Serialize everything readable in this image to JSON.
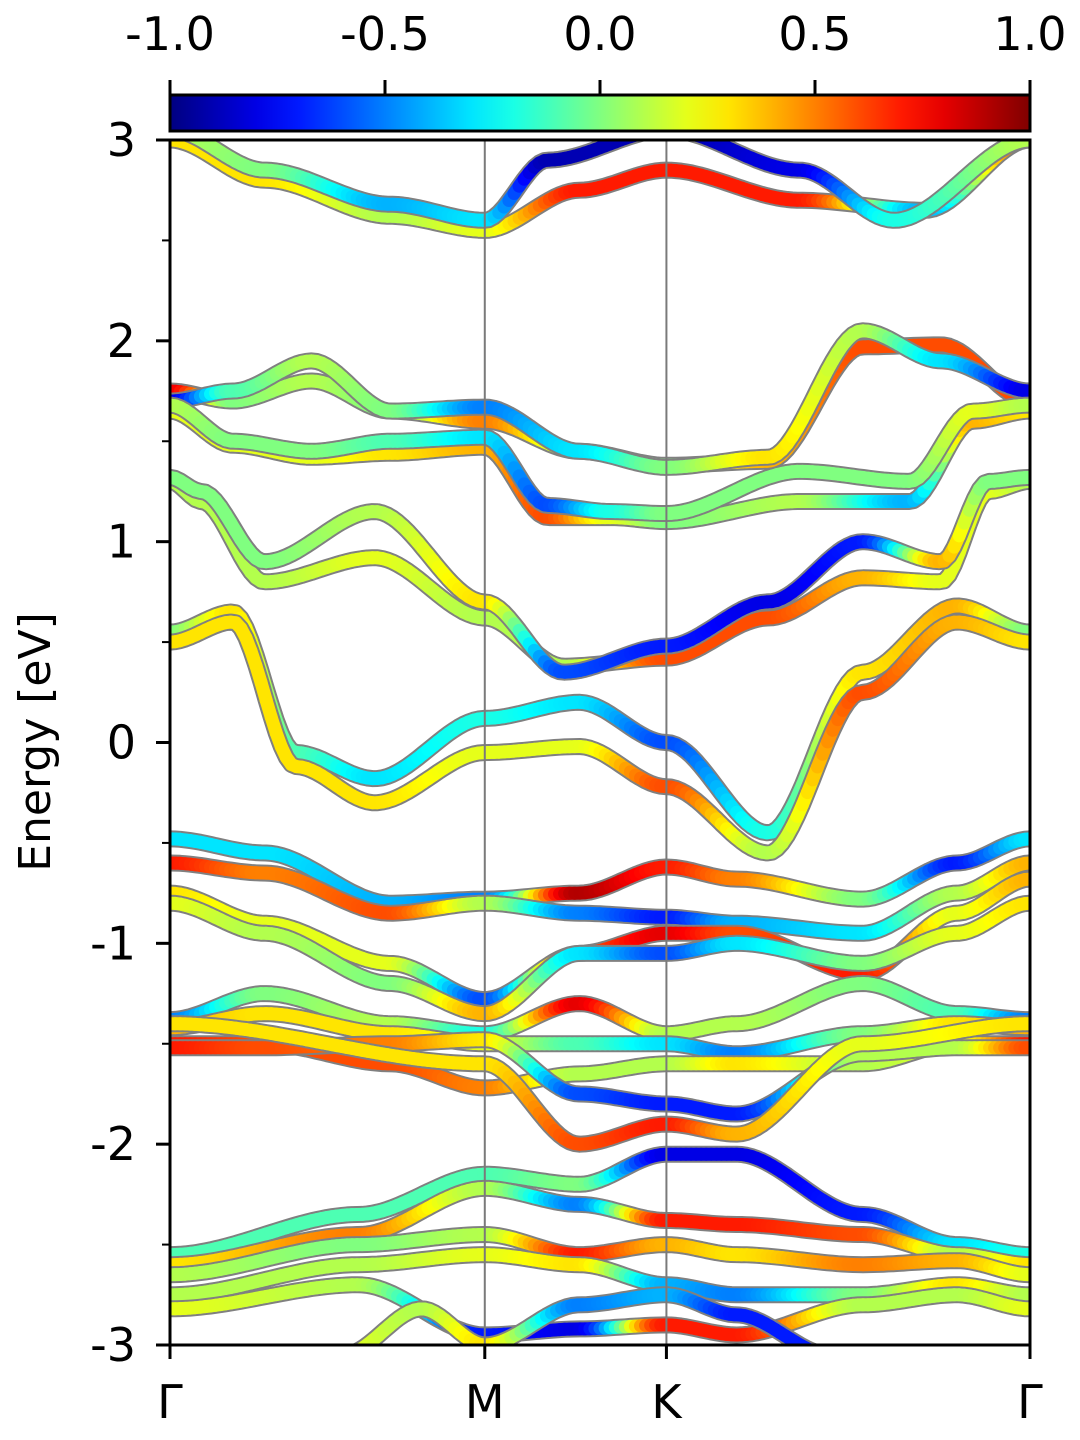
{
  "chart_data": {
    "type": "line",
    "title": "",
    "xlabel": "",
    "ylabel": "Energy [eV]",
    "ylim": [
      -3,
      3
    ],
    "x_ticks": [
      {
        "label": "Γ",
        "k": 0.0
      },
      {
        "label": "M",
        "k": 1.0
      },
      {
        "label": "K",
        "k": 1.577
      },
      {
        "label": "Γ",
        "k": 2.732
      }
    ],
    "y_ticks": [
      {
        "value": 3,
        "label": "3"
      },
      {
        "value": 2,
        "label": "2"
      },
      {
        "value": 1,
        "label": "1"
      },
      {
        "value": 0,
        "label": "0"
      },
      {
        "value": -1,
        "label": "-1"
      },
      {
        "value": -2,
        "label": "-2"
      },
      {
        "value": -3,
        "label": "-3"
      }
    ],
    "y_minor_ticks": [
      2.5,
      1.5,
      0.5,
      -0.5,
      -1.5,
      -2.5
    ],
    "colorbar": {
      "colormap": "jet",
      "range": [
        -1.0,
        1.0
      ],
      "tick_labels": [
        "-1.0",
        "-0.5",
        "0.0",
        "0.5",
        "1.0"
      ],
      "position": "top"
    },
    "bands": [
      {
        "k": [
          0,
          0.3,
          0.7,
          1.0,
          1.3,
          1.577,
          2.0,
          2.4,
          2.732
        ],
        "energy": [
          3.0,
          2.8,
          2.62,
          2.55,
          2.75,
          2.85,
          2.7,
          2.65,
          3.0
        ],
        "weight": [
          0.3,
          0.3,
          0.1,
          0.2,
          0.7,
          0.7,
          0.7,
          -0.4,
          0.6
        ]
      },
      {
        "k": [
          0,
          0.3,
          0.7,
          1.0,
          1.2,
          1.577,
          2.0,
          2.3,
          2.732
        ],
        "energy": [
          3.05,
          2.85,
          2.68,
          2.6,
          2.9,
          3.05,
          2.85,
          2.6,
          3.0
        ],
        "weight": [
          0.1,
          0.0,
          -0.4,
          -0.3,
          -0.9,
          -0.9,
          -0.8,
          -0.2,
          0.1
        ]
      },
      {
        "k": [
          0,
          0.2,
          0.45,
          0.7,
          1.0,
          1.3,
          1.577,
          1.9,
          2.2,
          2.45,
          2.732
        ],
        "energy": [
          1.75,
          1.7,
          1.8,
          1.65,
          1.6,
          1.45,
          1.38,
          1.4,
          1.97,
          1.98,
          1.7
        ],
        "weight": [
          0.8,
          0.0,
          0.1,
          0.0,
          0.5,
          0.1,
          0.0,
          0.4,
          0.6,
          0.6,
          0.6
        ]
      },
      {
        "k": [
          0,
          0.2,
          0.45,
          0.7,
          1.0,
          1.3,
          1.577,
          1.9,
          2.2,
          2.45,
          2.732
        ],
        "energy": [
          1.7,
          1.75,
          1.9,
          1.65,
          1.67,
          1.45,
          1.37,
          1.42,
          2.05,
          1.9,
          1.75
        ],
        "weight": [
          -0.8,
          -0.1,
          0.1,
          0.0,
          -0.5,
          -0.3,
          0.0,
          0.3,
          0.1,
          -0.3,
          -0.8
        ]
      },
      {
        "k": [
          0,
          0.2,
          0.45,
          0.7,
          1.0,
          1.2,
          1.4,
          1.577,
          2.0,
          2.35,
          2.55,
          2.732
        ],
        "energy": [
          1.65,
          1.48,
          1.42,
          1.44,
          1.47,
          1.12,
          1.12,
          1.1,
          1.2,
          1.2,
          1.6,
          1.65
        ],
        "weight": [
          0.2,
          0.2,
          0.2,
          0.3,
          0.4,
          0.6,
          0.2,
          0.0,
          0.1,
          -0.4,
          0.4,
          0.3
        ]
      },
      {
        "k": [
          0,
          0.2,
          0.45,
          0.7,
          1.0,
          1.2,
          1.4,
          1.577,
          2.0,
          2.35,
          2.55,
          2.732
        ],
        "energy": [
          1.68,
          1.5,
          1.45,
          1.5,
          1.52,
          1.18,
          1.15,
          1.14,
          1.35,
          1.3,
          1.65,
          1.68
        ],
        "weight": [
          0.1,
          0.0,
          0.0,
          -0.1,
          -0.3,
          -0.6,
          -0.2,
          0.0,
          0.0,
          0.0,
          0.2,
          0.1
        ]
      },
      {
        "k": [
          0,
          0.1,
          0.3,
          0.65,
          1.0,
          1.25,
          1.577,
          1.9,
          2.2,
          2.45,
          2.6,
          2.732
        ],
        "energy": [
          1.3,
          1.2,
          0.8,
          0.92,
          0.62,
          0.38,
          0.42,
          0.62,
          0.82,
          0.8,
          1.25,
          1.3
        ],
        "weight": [
          0.1,
          0.1,
          0.1,
          0.2,
          0.1,
          0.1,
          0.6,
          0.6,
          0.4,
          0.2,
          0.2,
          0.1
        ]
      },
      {
        "k": [
          0,
          0.1,
          0.3,
          0.65,
          1.0,
          1.25,
          1.577,
          1.9,
          2.2,
          2.45,
          2.6,
          2.732
        ],
        "energy": [
          1.32,
          1.25,
          0.9,
          1.15,
          0.7,
          0.35,
          0.48,
          0.7,
          1.0,
          0.9,
          1.3,
          1.32
        ],
        "weight": [
          0.0,
          0.0,
          0.0,
          0.1,
          0.3,
          -0.6,
          -0.7,
          -0.8,
          -0.7,
          0.4,
          0.0,
          0.0
        ]
      },
      {
        "k": [
          0,
          0.2,
          0.4,
          0.65,
          1.0,
          1.3,
          1.577,
          1.9,
          2.2,
          2.5,
          2.732
        ],
        "energy": [
          0.55,
          0.65,
          -0.05,
          -0.18,
          0.12,
          0.2,
          0.0,
          -0.45,
          0.35,
          0.68,
          0.55
        ],
        "weight": [
          0.0,
          0.3,
          -0.1,
          -0.3,
          -0.2,
          -0.3,
          -0.6,
          -0.2,
          0.3,
          0.4,
          0.0
        ]
      },
      {
        "k": [
          0,
          0.2,
          0.4,
          0.65,
          1.0,
          1.3,
          1.577,
          1.9,
          2.2,
          2.5,
          2.732
        ],
        "energy": [
          0.5,
          0.6,
          -0.12,
          -0.3,
          -0.05,
          -0.02,
          -0.22,
          -0.55,
          0.25,
          0.6,
          0.5
        ],
        "weight": [
          0.3,
          0.3,
          0.3,
          0.3,
          0.2,
          0.2,
          0.6,
          0.1,
          0.6,
          0.4,
          0.3
        ]
      },
      {
        "k": [
          0,
          0.3,
          0.7,
          1.0,
          1.3,
          1.577,
          1.8,
          2.2,
          2.5,
          2.732
        ],
        "energy": [
          -0.48,
          -0.55,
          -0.8,
          -0.78,
          -0.75,
          -0.62,
          -0.68,
          -0.78,
          -0.6,
          -0.48
        ],
        "weight": [
          -0.3,
          -0.3,
          -0.4,
          -0.5,
          0.9,
          0.7,
          0.5,
          0.0,
          -0.7,
          -0.3
        ]
      },
      {
        "k": [
          0,
          0.3,
          0.7,
          1.0,
          1.3,
          1.577,
          1.8,
          2.2,
          2.5,
          2.732
        ],
        "energy": [
          -0.6,
          -0.65,
          -0.85,
          -0.8,
          -0.85,
          -0.87,
          -0.9,
          -0.95,
          -0.75,
          -0.6
        ],
        "weight": [
          0.7,
          0.5,
          0.6,
          0.1,
          -0.5,
          -0.7,
          -0.4,
          -0.3,
          0.1,
          0.4
        ]
      },
      {
        "k": [
          0,
          0.3,
          0.7,
          1.0,
          1.3,
          1.577,
          1.8,
          2.2,
          2.5,
          2.732
        ],
        "energy": [
          -0.75,
          -0.9,
          -1.1,
          -1.28,
          -1.05,
          -0.95,
          -0.95,
          -1.15,
          -0.85,
          -0.68
        ],
        "weight": [
          0.3,
          0.2,
          0.2,
          -0.6,
          0.6,
          0.8,
          0.6,
          0.7,
          0.2,
          0.4
        ]
      },
      {
        "k": [
          0,
          0.3,
          0.7,
          1.0,
          1.3,
          1.577,
          1.8,
          2.2,
          2.5,
          2.732
        ],
        "energy": [
          -0.8,
          -0.95,
          -1.2,
          -1.35,
          -1.05,
          -1.05,
          -1.0,
          -1.1,
          -0.95,
          -0.8
        ],
        "weight": [
          0.2,
          0.1,
          0.0,
          0.4,
          -0.3,
          -0.6,
          -0.3,
          0.0,
          0.2,
          0.3
        ]
      },
      {
        "k": [
          0,
          0.3,
          0.7,
          1.0,
          1.3,
          1.577,
          1.8,
          2.2,
          2.5,
          2.732
        ],
        "energy": [
          -1.38,
          -1.25,
          -1.4,
          -1.45,
          -1.3,
          -1.45,
          -1.4,
          -1.2,
          -1.35,
          -1.38
        ],
        "weight": [
          -0.5,
          0.0,
          0.1,
          -0.2,
          0.8,
          0.1,
          0.1,
          0.0,
          -0.1,
          -0.5
        ]
      },
      {
        "k": [
          0,
          0.3,
          0.7,
          1.0,
          1.3,
          1.577,
          1.8,
          2.2,
          2.5,
          2.732
        ],
        "energy": [
          -1.42,
          -1.35,
          -1.45,
          -1.5,
          -1.5,
          -1.5,
          -1.55,
          -1.45,
          -1.4,
          -1.42
        ],
        "weight": [
          0.4,
          0.3,
          0.3,
          0.2,
          -0.1,
          -0.3,
          -0.5,
          0.0,
          0.3,
          0.4
        ]
      },
      {
        "k": [
          0,
          0.3,
          0.7,
          1.0,
          1.3,
          1.577,
          1.8,
          2.2,
          2.5,
          2.732
        ],
        "energy": [
          -1.5,
          -1.5,
          -1.6,
          -1.72,
          -1.65,
          -1.6,
          -1.6,
          -1.6,
          -1.5,
          -1.5
        ],
        "weight": [
          0.7,
          0.6,
          0.6,
          0.5,
          0.1,
          0.1,
          0.3,
          0.1,
          0.2,
          0.7
        ]
      },
      {
        "k": [
          0,
          0.3,
          0.7,
          1.0,
          1.3,
          1.577,
          1.8,
          2.2,
          2.5,
          2.732
        ],
        "energy": [
          -1.52,
          -1.52,
          -1.5,
          -1.48,
          -1.75,
          -1.8,
          -1.85,
          -1.55,
          -1.52,
          -1.52
        ],
        "weight": [
          0.7,
          0.6,
          0.5,
          0.3,
          -0.6,
          -0.7,
          -0.7,
          0.1,
          0.1,
          0.6
        ]
      },
      {
        "k": [
          0,
          1.0,
          1.3,
          1.577,
          1.8,
          2.2,
          2.732
        ],
        "energy": [
          -1.4,
          -1.6,
          -2.0,
          -1.9,
          -1.95,
          -1.5,
          -1.4
        ],
        "weight": [
          0.3,
          0.3,
          0.6,
          0.7,
          0.4,
          0.2,
          0.3
        ]
      },
      {
        "k": [
          0,
          0.6,
          1.0,
          1.3,
          1.577,
          1.8,
          2.2,
          2.5,
          2.732
        ],
        "energy": [
          -2.55,
          -2.35,
          -2.15,
          -2.2,
          -2.05,
          -2.05,
          -2.35,
          -2.5,
          -2.55
        ],
        "weight": [
          -0.1,
          -0.1,
          -0.1,
          0.0,
          -0.8,
          -0.8,
          -0.7,
          -0.3,
          -0.2
        ]
      },
      {
        "k": [
          0,
          0.6,
          1.0,
          1.3,
          1.577,
          1.8,
          2.2,
          2.5,
          2.732
        ],
        "energy": [
          -2.6,
          -2.45,
          -2.22,
          -2.3,
          -2.38,
          -2.4,
          -2.45,
          -2.55,
          -2.6
        ],
        "weight": [
          0.3,
          0.5,
          0.1,
          -0.5,
          0.7,
          0.7,
          0.6,
          0.1,
          0.3
        ]
      },
      {
        "k": [
          0,
          0.6,
          1.0,
          1.3,
          1.577,
          1.8,
          2.2,
          2.5,
          2.732
        ],
        "energy": [
          -2.65,
          -2.5,
          -2.45,
          -2.55,
          -2.5,
          -2.55,
          -2.6,
          -2.58,
          -2.65
        ],
        "weight": [
          0.1,
          0.0,
          0.1,
          0.7,
          0.4,
          0.3,
          0.5,
          0.4,
          0.2
        ]
      },
      {
        "k": [
          0,
          0.6,
          1.0,
          1.3,
          1.577,
          1.8,
          2.2,
          2.5,
          2.732
        ],
        "energy": [
          -2.75,
          -2.6,
          -2.55,
          -2.6,
          -2.7,
          -2.75,
          -2.75,
          -2.7,
          -2.75
        ],
        "weight": [
          0.1,
          0.1,
          0.2,
          0.3,
          -0.4,
          -0.5,
          0.0,
          0.3,
          0.1
        ]
      },
      {
        "k": [
          0,
          0.6,
          1.0,
          1.3,
          1.577,
          1.8,
          2.2,
          2.5,
          2.732
        ],
        "energy": [
          -2.82,
          -2.7,
          -2.95,
          -2.92,
          -2.9,
          -2.95,
          -2.8,
          -2.75,
          -2.82
        ],
        "weight": [
          0.2,
          0.1,
          -0.7,
          -0.8,
          0.7,
          0.7,
          0.1,
          0.1,
          0.2
        ]
      },
      {
        "k": [
          0.55,
          0.8,
          1.0,
          1.3,
          1.577,
          1.8,
          2.1
        ],
        "energy": [
          -3.05,
          -2.82,
          -3.0,
          -2.8,
          -2.75,
          -2.85,
          -3.05
        ],
        "weight": [
          0.2,
          0.1,
          0.3,
          -0.5,
          -0.4,
          -0.7,
          -0.7
        ]
      }
    ]
  }
}
